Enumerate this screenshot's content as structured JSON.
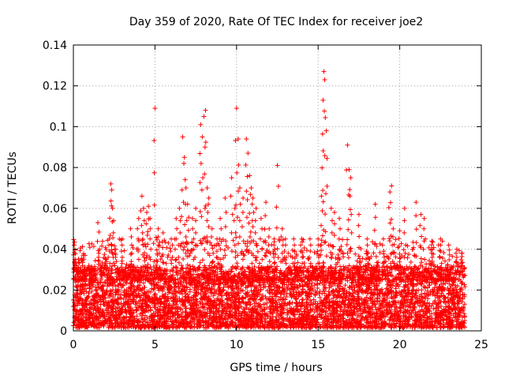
{
  "chart_data": {
    "type": "scatter",
    "title": "Day 359 of 2020, Rate Of TEC Index for receiver joe2",
    "xlabel": "GPS time / hours",
    "ylabel": "ROTI / TECUs",
    "xlim": [
      0,
      25
    ],
    "ylim": [
      0,
      0.14
    ],
    "x_ticks": [
      0,
      5,
      10,
      15,
      20,
      25
    ],
    "x_tick_labels": [
      "0",
      "5",
      "10",
      "15",
      "20",
      "25"
    ],
    "y_ticks": [
      0,
      0.02,
      0.04,
      0.06,
      0.08,
      0.1,
      0.12,
      0.14
    ],
    "y_tick_labels": [
      "0",
      "0.02",
      "0.04",
      "0.06",
      "0.08",
      "0.1",
      "0.12",
      "0.14"
    ],
    "grid": true,
    "marker": "+",
    "color": "#ff0000",
    "series": [
      {
        "name": "ROTI",
        "x": [
          0.05,
          0.1,
          0.2,
          0.3,
          0.5,
          1.0,
          1.5,
          1.6,
          2.0,
          2.2,
          2.3,
          2.35,
          2.4,
          2.6,
          3.0,
          3.5,
          4.0,
          4.2,
          4.3,
          4.5,
          4.6,
          4.7,
          5.0,
          5.2,
          5.5,
          6.0,
          6.3,
          6.5,
          6.7,
          6.8,
          6.9,
          7.0,
          7.3,
          7.5,
          7.8,
          7.9,
          8.0,
          8.1,
          8.2,
          8.3,
          8.5,
          8.8,
          9.0,
          9.3,
          9.7,
          9.9,
          10.0,
          10.1,
          10.2,
          10.4,
          10.6,
          10.7,
          10.8,
          10.9,
          11.0,
          11.2,
          11.5,
          11.8,
          12.0,
          12.3,
          12.5,
          12.8,
          13.0,
          13.5,
          14.0,
          14.5,
          15.0,
          15.2,
          15.3,
          15.35,
          15.4,
          15.5,
          15.8,
          16.0,
          16.3,
          16.8,
          16.9,
          17.0,
          17.5,
          18.0,
          18.5,
          19.0,
          19.4,
          19.5,
          19.6,
          20.0,
          20.3,
          21.0,
          21.3,
          21.5,
          22.0,
          22.5,
          23.0,
          23.5,
          23.8
        ],
        "y": [
          0.042,
          0.035,
          0.03,
          0.028,
          0.025,
          0.03,
          0.053,
          0.04,
          0.035,
          0.045,
          0.072,
          0.069,
          0.06,
          0.04,
          0.045,
          0.05,
          0.055,
          0.066,
          0.06,
          0.058,
          0.061,
          0.055,
          0.109,
          0.05,
          0.048,
          0.045,
          0.055,
          0.06,
          0.095,
          0.085,
          0.07,
          0.062,
          0.055,
          0.06,
          0.101,
          0.095,
          0.105,
          0.108,
          0.07,
          0.065,
          0.05,
          0.045,
          0.055,
          0.065,
          0.075,
          0.06,
          0.109,
          0.094,
          0.07,
          0.065,
          0.094,
          0.087,
          0.076,
          0.07,
          0.065,
          0.06,
          0.055,
          0.063,
          0.05,
          0.045,
          0.081,
          0.05,
          0.045,
          0.045,
          0.045,
          0.045,
          0.045,
          0.066,
          0.113,
          0.127,
          0.123,
          0.098,
          0.06,
          0.058,
          0.055,
          0.091,
          0.079,
          0.075,
          0.057,
          0.045,
          0.062,
          0.045,
          0.068,
          0.071,
          0.05,
          0.049,
          0.06,
          0.063,
          0.057,
          0.055,
          0.04,
          0.045,
          0.042,
          0.04,
          0.038
        ]
      }
    ],
    "dense_band": {
      "description": "dense cluster of points",
      "x_range": [
        0,
        24
      ],
      "y_range": [
        0.0,
        0.03
      ]
    }
  }
}
